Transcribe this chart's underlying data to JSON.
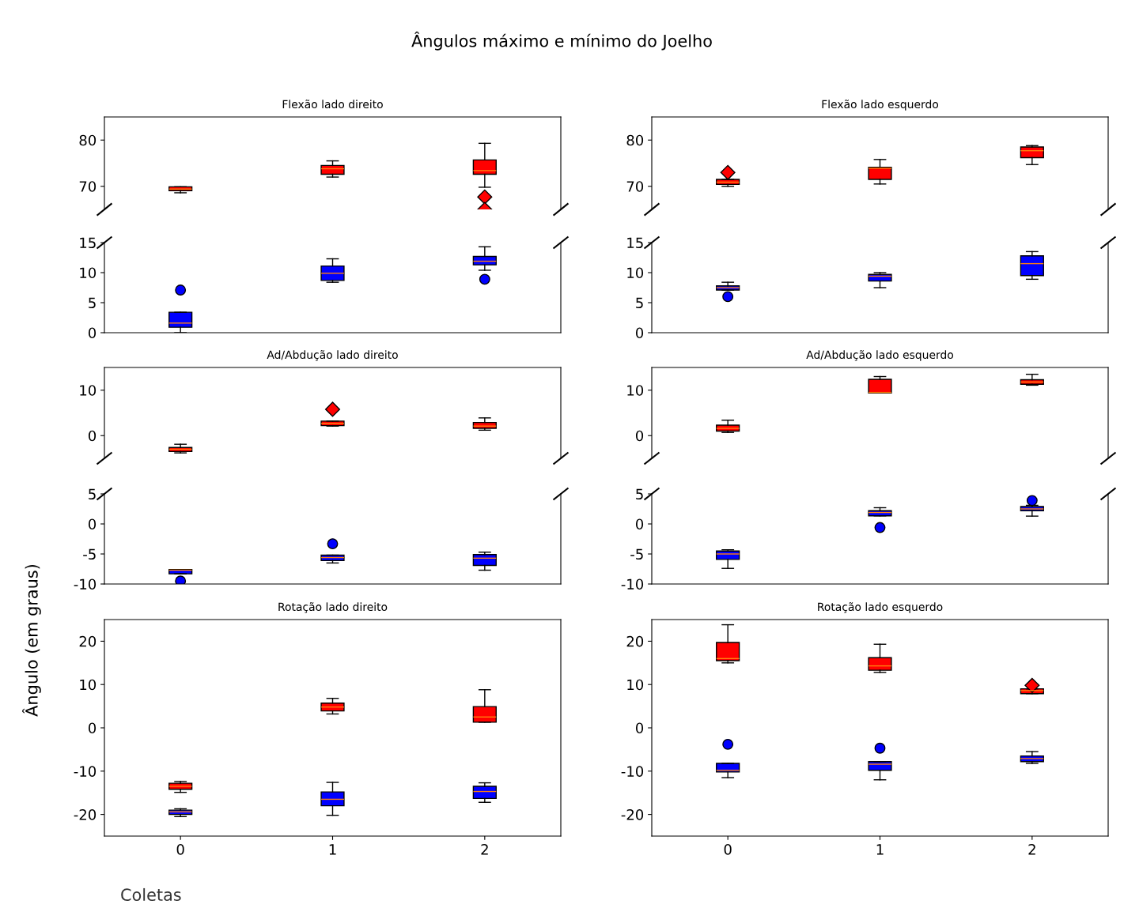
{
  "chart_data": [
    {
      "type": "other",
      "title": "Ângulos máximo e mínimo do Joelho",
      "ylabel": "Ângulo (em graus)",
      "xlabel": "Coletas"
    },
    {
      "type": "box",
      "title": "Flexão lado direito",
      "categories": [
        null,
        null,
        null
      ],
      "ylim": [
        65,
        85
      ],
      "yticks": [
        70,
        80
      ],
      "tick_labels": "y",
      "series": [
        {
          "color": "#ff0000",
          "marker": "diamond",
          "boxes": [
            {
              "low": 68.6,
              "q1": 69.05,
              "median": 69.4,
              "q3": 69.9,
              "high": 69.9
            },
            {
              "low": 72.0,
              "q1": 72.6,
              "median": 73.8,
              "q3": 74.5,
              "high": 75.5
            },
            {
              "low": 69.8,
              "q1": 72.6,
              "median": 73.4,
              "q3": 75.7,
              "high": 79.3,
              "outliers": [
                67.7,
                65.0
              ]
            }
          ]
        }
      ]
    },
    {
      "type": "box",
      "categories": [
        null,
        null,
        null
      ],
      "ylim": [
        0,
        15
      ],
      "yticks": [
        0,
        5,
        10,
        15
      ],
      "tick_labels": "y",
      "series": [
        {
          "color": "#0000ff",
          "marker": "circle",
          "boxes": [
            {
              "low": 0.0,
              "q1": 0.9,
              "median": 1.6,
              "q3": 3.4,
              "high": 3.4,
              "outliers": [
                7.1
              ]
            },
            {
              "low": 8.4,
              "q1": 8.7,
              "median": 9.9,
              "q3": 11.1,
              "high": 12.3
            },
            {
              "low": 10.4,
              "q1": 11.3,
              "median": 11.9,
              "q3": 12.7,
              "high": 14.3,
              "outliers": [
                8.9
              ]
            }
          ]
        }
      ]
    },
    {
      "type": "box",
      "title": "Flexão lado esquerdo",
      "categories": [
        null,
        null,
        null
      ],
      "ylim": [
        65,
        85
      ],
      "yticks": [
        70,
        80
      ],
      "tick_labels": "y",
      "series": [
        {
          "color": "#ff0000",
          "marker": "diamond",
          "boxes": [
            {
              "low": 70.0,
              "q1": 70.4,
              "median": 70.9,
              "q3": 71.5,
              "high": 71.5,
              "outliers": [
                73.0
              ]
            },
            {
              "low": 70.5,
              "q1": 71.5,
              "median": 73.9,
              "q3": 74.1,
              "high": 75.8
            },
            {
              "low": 74.7,
              "q1": 76.2,
              "median": 77.7,
              "q3": 78.5,
              "high": 78.8
            }
          ]
        }
      ]
    },
    {
      "type": "box",
      "categories": [
        null,
        null,
        null
      ],
      "ylim": [
        0,
        15
      ],
      "yticks": [
        0,
        5,
        10,
        15
      ],
      "tick_labels": "y",
      "series": [
        {
          "color": "#0000ff",
          "marker": "circle",
          "boxes": [
            {
              "low": 7.1,
              "q1": 7.1,
              "median": 7.5,
              "q3": 7.8,
              "high": 8.4,
              "outliers": [
                6.0
              ]
            },
            {
              "low": 7.5,
              "q1": 8.6,
              "median": 9.4,
              "q3": 9.7,
              "high": 10.0
            },
            {
              "low": 8.9,
              "q1": 9.5,
              "median": 11.5,
              "q3": 12.8,
              "high": 13.5
            }
          ]
        }
      ]
    },
    {
      "type": "box",
      "title": "Ad/Abdução lado direito",
      "categories": [
        null,
        null,
        null
      ],
      "ylim": [
        -5,
        15
      ],
      "yticks": [
        0,
        10
      ],
      "tick_labels": "y",
      "series": [
        {
          "color": "#ff0000",
          "marker": "diamond",
          "boxes": [
            {
              "low": -3.8,
              "q1": -3.5,
              "median": -3.0,
              "q3": -2.6,
              "high": -1.9
            },
            {
              "low": 2.1,
              "q1": 2.2,
              "median": 2.7,
              "q3": 3.2,
              "high": 3.2,
              "outliers": [
                5.8
              ]
            },
            {
              "low": 1.2,
              "q1": 1.6,
              "median": 2.1,
              "q3": 2.9,
              "high": 3.9
            }
          ]
        }
      ]
    },
    {
      "type": "box",
      "categories": [
        null,
        null,
        null
      ],
      "ylim": [
        -10,
        5
      ],
      "yticks": [
        -10,
        -5,
        0,
        5
      ],
      "tick_labels": "y",
      "series": [
        {
          "color": "#0000ff",
          "marker": "circle",
          "boxes": [
            {
              "low": -8.3,
              "q1": -8.3,
              "median": -7.7,
              "q3": -7.6,
              "high": -7.6,
              "outliers": [
                -9.5
              ]
            },
            {
              "low": -6.5,
              "q1": -6.1,
              "median": -5.6,
              "q3": -5.2,
              "high": -5.2,
              "outliers": [
                -3.3
              ]
            },
            {
              "low": -7.7,
              "q1": -6.9,
              "median": -5.7,
              "q3": -5.1,
              "high": -4.7
            }
          ]
        }
      ]
    },
    {
      "type": "box",
      "title": "Ad/Abdução lado esquerdo",
      "categories": [
        null,
        null,
        null
      ],
      "ylim": [
        -5,
        15
      ],
      "yticks": [
        0,
        10
      ],
      "tick_labels": "y",
      "series": [
        {
          "color": "#ff0000",
          "marker": "diamond",
          "boxes": [
            {
              "low": 0.7,
              "q1": 1.0,
              "median": 1.6,
              "q3": 2.3,
              "high": 3.4
            },
            {
              "low": 9.4,
              "q1": 9.4,
              "median": 9.5,
              "q3": 12.4,
              "high": 13.0
            },
            {
              "low": 11.1,
              "q1": 11.3,
              "median": 11.8,
              "q3": 12.3,
              "high": 13.5
            }
          ]
        }
      ]
    },
    {
      "type": "box",
      "categories": [
        null,
        null,
        null
      ],
      "ylim": [
        -10,
        5
      ],
      "yticks": [
        -10,
        -5,
        0,
        5
      ],
      "tick_labels": "y",
      "series": [
        {
          "color": "#0000ff",
          "marker": "circle",
          "boxes": [
            {
              "low": -7.4,
              "q1": -5.9,
              "median": -5.0,
              "q3": -4.5,
              "high": -4.3
            },
            {
              "low": 1.35,
              "q1": 1.35,
              "median": 1.9,
              "q3": 2.2,
              "high": 2.7,
              "outliers": [
                -0.6
              ]
            },
            {
              "low": 1.3,
              "q1": 2.2,
              "median": 2.5,
              "q3": 2.9,
              "high": 3.1,
              "outliers": [
                3.9
              ]
            }
          ]
        }
      ]
    },
    {
      "type": "box",
      "title": "Rotação lado direito",
      "categories": [
        "0",
        "1",
        "2"
      ],
      "ylim": [
        -25,
        25
      ],
      "yticks": [
        -20,
        -10,
        0,
        10,
        20
      ],
      "series": [
        {
          "color": "#ff0000",
          "marker": "diamond",
          "boxes": [
            {
              "low": -14.9,
              "q1": -14.2,
              "median": -13.5,
              "q3": -12.8,
              "high": -12.4
            },
            {
              "low": 3.2,
              "q1": 3.9,
              "median": 4.8,
              "q3": 5.7,
              "high": 6.8
            },
            {
              "low": 1.3,
              "q1": 1.3,
              "median": 2.5,
              "q3": 4.9,
              "high": 8.8
            }
          ]
        },
        {
          "color": "#0000ff",
          "marker": "circle",
          "boxes": [
            {
              "low": -20.5,
              "q1": -20.0,
              "median": -19.4,
              "q3": -19.0,
              "high": -18.7
            },
            {
              "low": -20.2,
              "q1": -18.0,
              "median": -16.5,
              "q3": -14.8,
              "high": -12.6
            },
            {
              "low": -17.2,
              "q1": -16.3,
              "median": -14.7,
              "q3": -13.5,
              "high": -12.7
            }
          ]
        }
      ]
    },
    {
      "type": "box",
      "title": "Rotação lado esquerdo",
      "categories": [
        "0",
        "1",
        "2"
      ],
      "ylim": [
        -25,
        25
      ],
      "yticks": [
        -20,
        -10,
        0,
        10,
        20
      ],
      "series": [
        {
          "color": "#ff0000",
          "marker": "diamond",
          "boxes": [
            {
              "low": 15.0,
              "q1": 15.5,
              "median": 16.0,
              "q3": 19.7,
              "high": 23.8
            },
            {
              "low": 12.8,
              "q1": 13.3,
              "median": 14.3,
              "q3": 16.2,
              "high": 19.3
            },
            {
              "low": 7.9,
              "q1": 7.9,
              "median": 8.6,
              "q3": 9.0,
              "high": 9.0,
              "outliers": [
                9.8
              ]
            }
          ]
        },
        {
          "color": "#0000ff",
          "marker": "circle",
          "boxes": [
            {
              "low": -11.5,
              "q1": -10.2,
              "median": -9.8,
              "q3": -8.2,
              "high": -8.2,
              "outliers": [
                -3.8
              ]
            },
            {
              "low": -12.0,
              "q1": -9.8,
              "median": -8.4,
              "q3": -7.8,
              "high": -7.8,
              "outliers": [
                -4.7
              ]
            },
            {
              "low": -8.2,
              "q1": -7.8,
              "median": -7.1,
              "q3": -6.5,
              "high": -5.5
            }
          ]
        }
      ]
    }
  ]
}
